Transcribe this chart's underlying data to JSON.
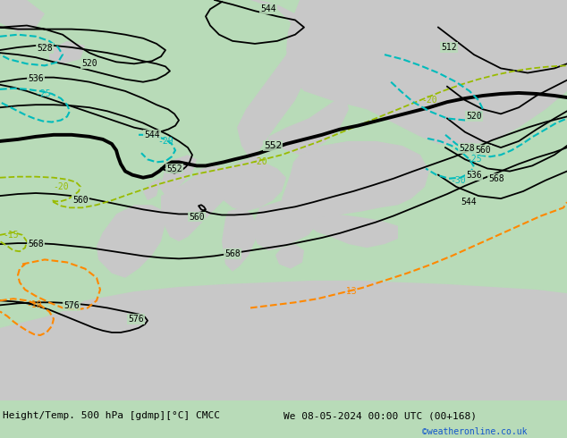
{
  "title_left": "Height/Temp. 500 hPa [gdmp][°C] CMCC",
  "title_right": "We 08-05-2024 00:00 UTC (00+168)",
  "credit": "©weatheronline.co.uk",
  "bg_color": "#b8dbb8",
  "land_color": "#c8c8c8",
  "bottom_bar_color": "#d8d8d8",
  "credit_color": "#1155cc",
  "cyan_color": "#00bbbb",
  "yellow_green_color": "#99bb00",
  "orange_color": "#ff8800"
}
